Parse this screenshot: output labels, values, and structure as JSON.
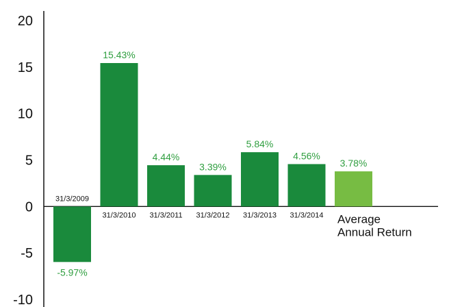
{
  "chart_data": {
    "type": "bar",
    "categories": [
      "31/3/2009",
      "31/3/2010",
      "31/3/2011",
      "31/3/2012",
      "31/3/2013",
      "31/3/2014",
      "Average Annual Return"
    ],
    "category_label_lines": [
      [
        "31/3/2009"
      ],
      [
        "31/3/2010"
      ],
      [
        "31/3/2011"
      ],
      [
        "31/3/2012"
      ],
      [
        "31/3/2013"
      ],
      [
        "31/3/2014"
      ],
      [
        "Average",
        "Annual Return"
      ]
    ],
    "values": [
      -5.97,
      15.43,
      4.44,
      3.39,
      5.84,
      4.56,
      3.78
    ],
    "data_labels": [
      "-5.97%",
      "15.43%",
      "4.44%",
      "3.39%",
      "5.84%",
      "4.56%",
      "3.78%"
    ],
    "bar_colors": [
      "#1a8a3c",
      "#1a8a3c",
      "#1a8a3c",
      "#1a8a3c",
      "#1a8a3c",
      "#1a8a3c",
      "#77bc43"
    ],
    "label_color": "#2f9e3f",
    "yticks": [
      20,
      15,
      10,
      5,
      0,
      -5,
      -10
    ],
    "ylim": [
      -10,
      20
    ],
    "grid": false,
    "legend": "none"
  }
}
